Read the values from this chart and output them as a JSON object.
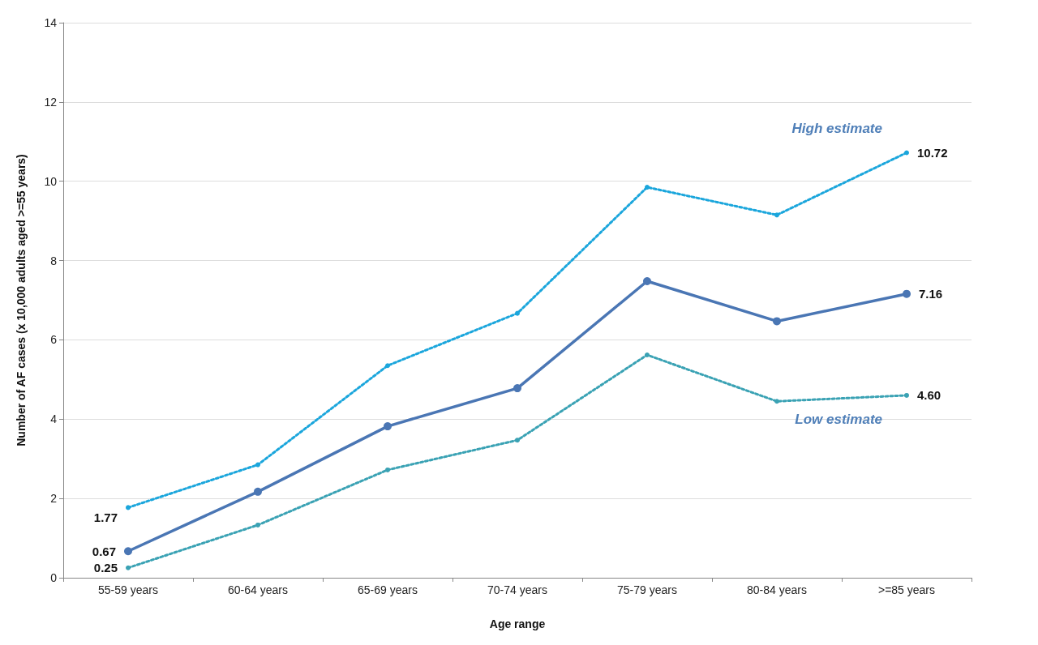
{
  "chart_data": {
    "type": "line",
    "xlabel": "Age range",
    "ylabel": "Number of AF cases (x 10,000 adults aged >=55 years)",
    "categories": [
      "55-59 years",
      "60-64 years",
      "65-69 years",
      "70-74 years",
      "75-79 years",
      "80-84 years",
      ">=85 years"
    ],
    "series": [
      {
        "name": "High estimate",
        "color": "#1ba6dc",
        "line_style": "dotted",
        "values": [
          1.77,
          2.85,
          5.35,
          6.67,
          9.85,
          9.15,
          10.72
        ],
        "value_labels": [
          "1.77",
          null,
          null,
          null,
          null,
          null,
          "10.72"
        ]
      },
      {
        "color": "#4a76b4",
        "line_style": "solid",
        "values": [
          0.67,
          2.17,
          3.82,
          4.78,
          7.48,
          6.47,
          7.16
        ],
        "value_labels": [
          "0.67",
          null,
          null,
          null,
          null,
          null,
          "7.16"
        ]
      },
      {
        "name": "Low estimate",
        "color": "#3aa2b4",
        "line_style": "dotted",
        "values": [
          0.25,
          1.33,
          2.72,
          3.47,
          5.62,
          4.45,
          4.6
        ],
        "value_labels": [
          "0.25",
          null,
          null,
          null,
          null,
          null,
          "4.60"
        ]
      }
    ],
    "ylim": [
      0,
      14
    ],
    "yticks": [
      0,
      2,
      4,
      6,
      8,
      10,
      12,
      14
    ],
    "grid": "y",
    "legend": false,
    "marker": "circle"
  }
}
